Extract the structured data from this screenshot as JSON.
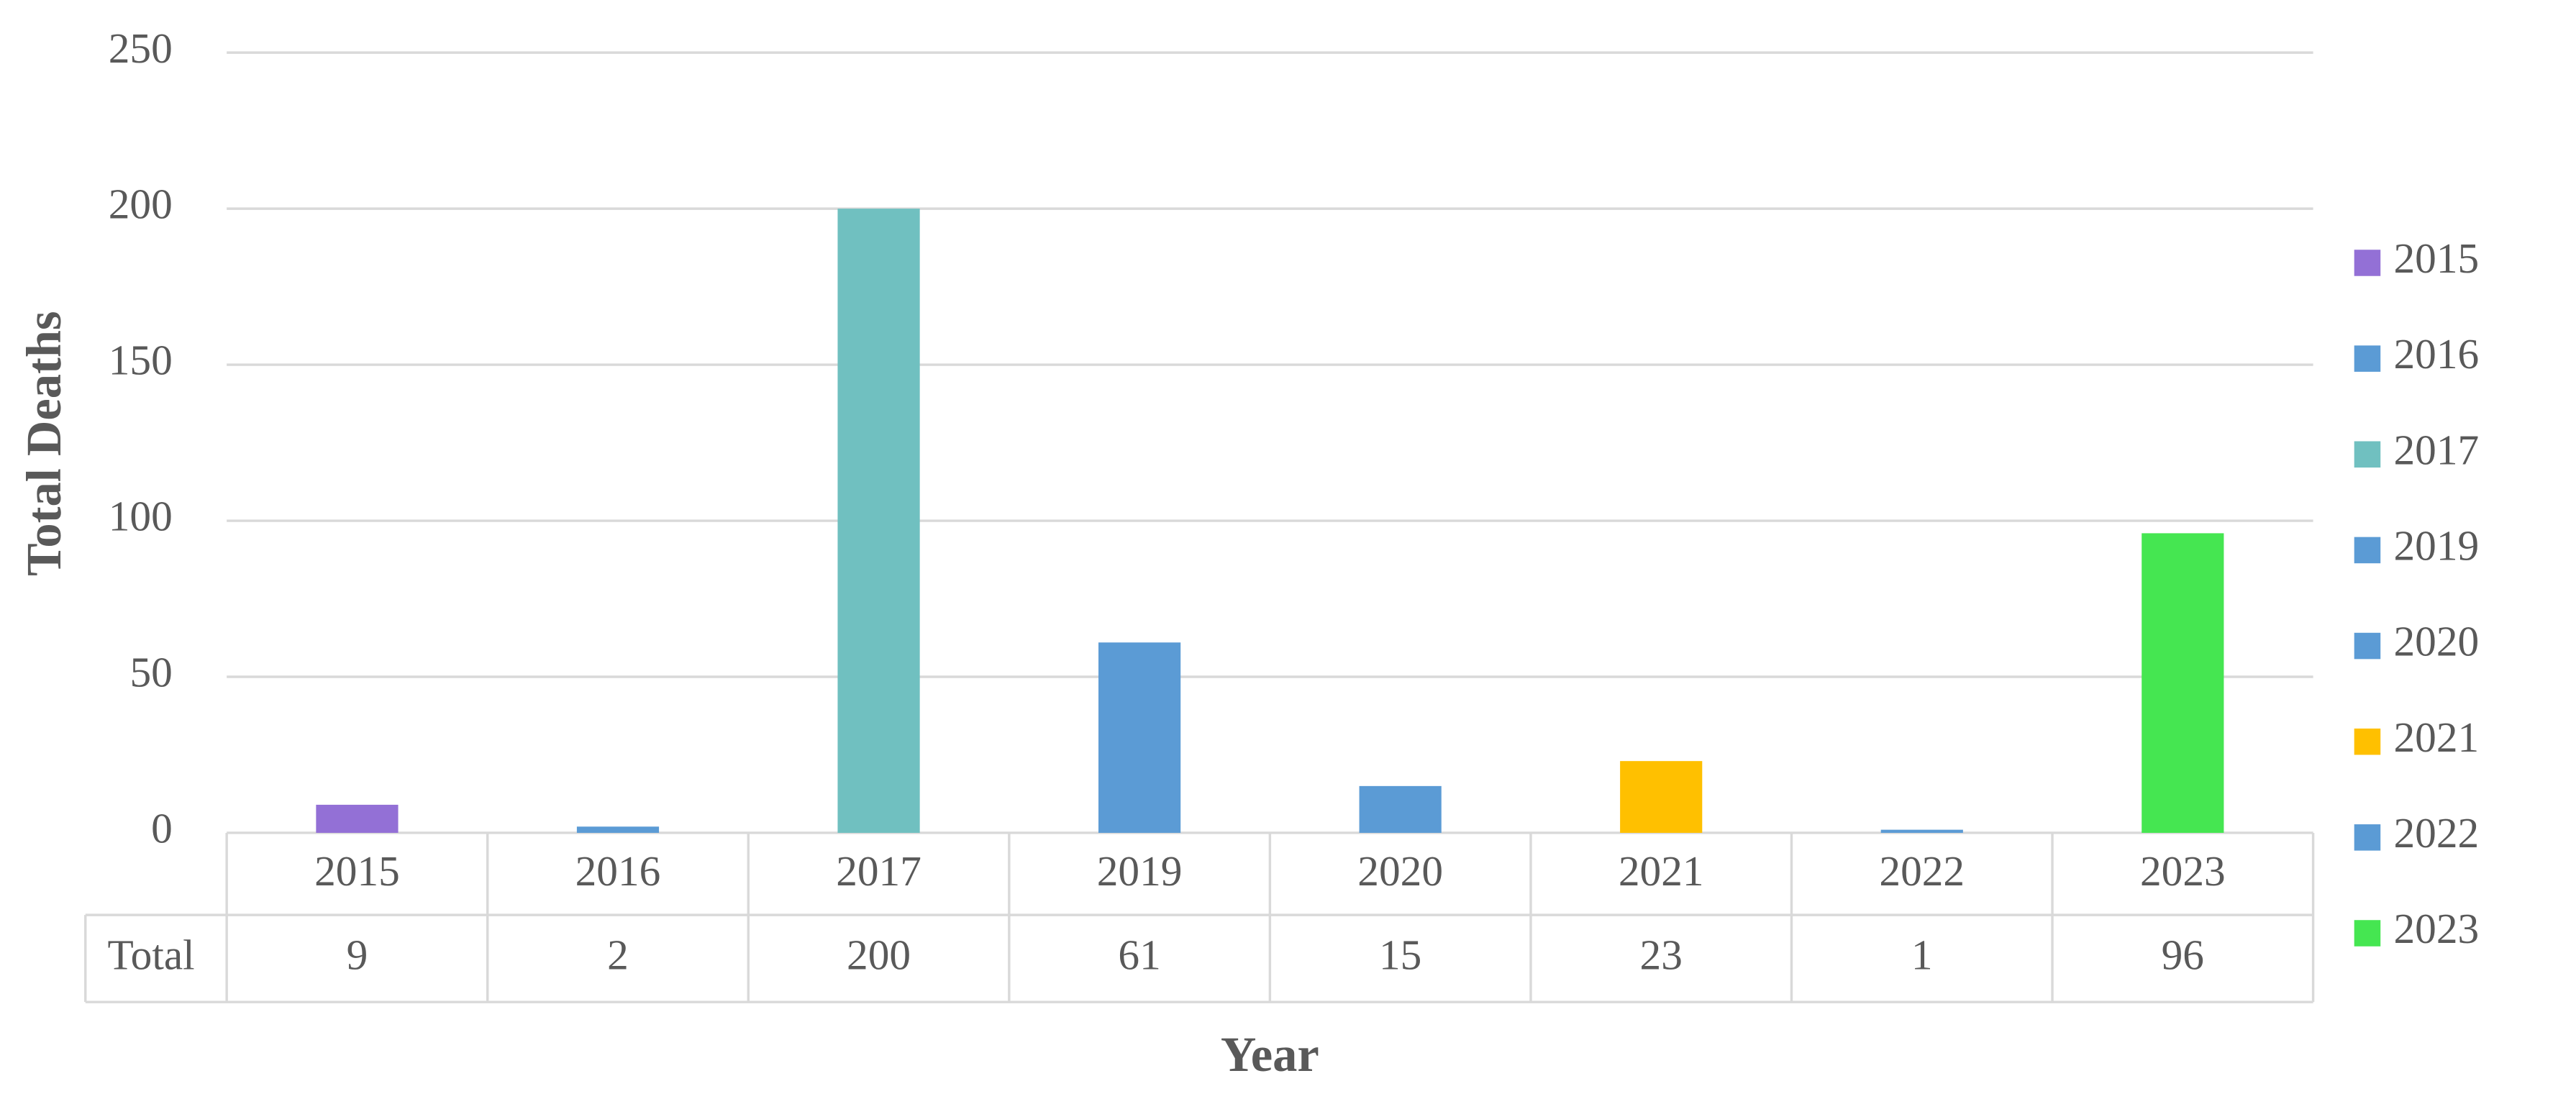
{
  "chart_data": {
    "type": "bar",
    "categories": [
      "2015",
      "2016",
      "2017",
      "2019",
      "2020",
      "2021",
      "2022",
      "2023"
    ],
    "values": [
      9,
      2,
      200,
      61,
      15,
      23,
      1,
      96
    ],
    "colors": [
      "#9370d6",
      "#5b9bd5",
      "#70c0c0",
      "#5b9bd5",
      "#5b9bd5",
      "#ffc000",
      "#5b9bd5",
      "#45e651"
    ],
    "ylim": [
      0,
      250
    ],
    "yticks": [
      0,
      50,
      100,
      150,
      200,
      250
    ],
    "y_label": "Total Deaths",
    "x_label": "Year",
    "table_row_label": "Total",
    "grid": true,
    "legend": "right"
  }
}
